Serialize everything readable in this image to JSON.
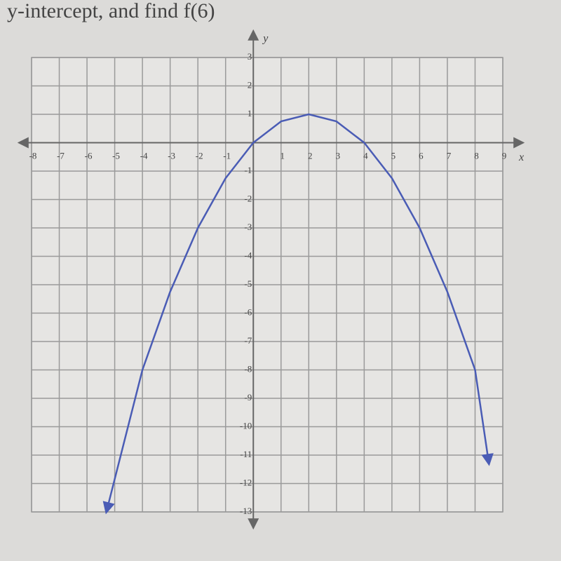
{
  "chart_data": {
    "type": "line",
    "title": "y-intercept, and find f(6)",
    "x_label": "x",
    "y_label": "y",
    "x": [
      -5.3,
      -4,
      -3,
      -2,
      -1,
      0,
      1,
      2,
      3,
      4,
      5,
      6,
      7,
      8,
      8.5
    ],
    "series": [
      {
        "color": "#4a5cb5",
        "values": [
          -13,
          -8,
          -5.25,
          -3,
          -1.25,
          0,
          0.75,
          1,
          0.75,
          0,
          -1.25,
          -3,
          -5.25,
          -8,
          -11.3
        ]
      }
    ],
    "xlim": [
      -8,
      9
    ],
    "ylim": [
      -13,
      3
    ],
    "xticks": [
      -8,
      -7,
      -6,
      -5,
      -4,
      -3,
      -2,
      -1,
      1,
      2,
      3,
      4,
      5,
      6,
      7,
      8,
      9
    ],
    "yticks": [
      -13,
      -12,
      -11,
      -10,
      -9,
      -8,
      -7,
      -6,
      -5,
      -4,
      -3,
      -2,
      -1,
      1,
      2,
      3
    ],
    "grid": true
  }
}
